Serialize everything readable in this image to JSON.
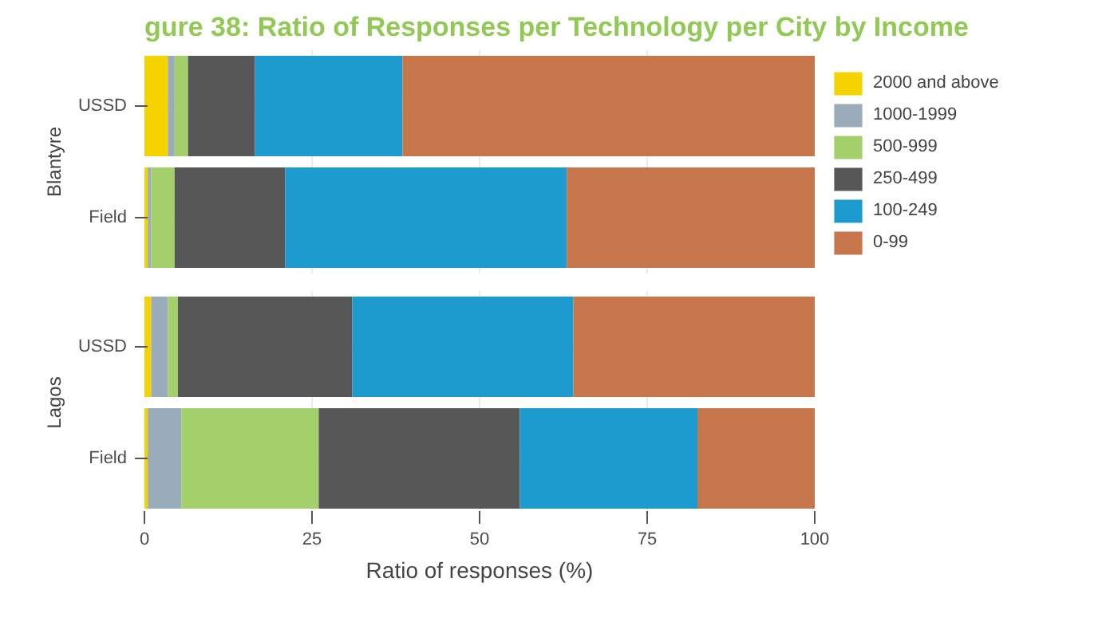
{
  "chart_data": [
    {
      "type": "bar",
      "orientation": "horizontal",
      "stacked": true,
      "title": "gure 38: Ratio of Responses per Technology per City by Income",
      "ylabel": "Blantyre",
      "categories": [
        "USSD",
        "Field"
      ],
      "xlim": [
        0,
        100
      ],
      "xticks": [
        0,
        25,
        50,
        75,
        100
      ],
      "grid": true,
      "tick_labels": "y",
      "legend": "right",
      "series": [
        {
          "name": "2000 and above",
          "color": "#f5d300",
          "values": [
            3.5,
            0.5
          ]
        },
        {
          "name": "1000-1999",
          "color": "#9aabb9",
          "values": [
            1,
            0.5
          ]
        },
        {
          "name": "500-999",
          "color": "#a3d06b",
          "values": [
            2,
            3.5
          ]
        },
        {
          "name": "250-499",
          "color": "#575757",
          "values": [
            10,
            16.5
          ]
        },
        {
          "name": "100-249",
          "color": "#1d9bcf",
          "values": [
            22,
            42
          ]
        },
        {
          "name": "0-99",
          "color": "#c6764a",
          "values": [
            61.5,
            37
          ]
        }
      ]
    },
    {
      "type": "bar",
      "orientation": "horizontal",
      "stacked": true,
      "ylabel": "Lagos",
      "xlabel": "Ratio of responses (%)",
      "categories": [
        "USSD",
        "Field"
      ],
      "xlim": [
        0,
        100
      ],
      "xticks": [
        0,
        25,
        50,
        75,
        100
      ],
      "grid": true,
      "series": [
        {
          "color": "#f5d300",
          "values": [
            1,
            0.5
          ]
        },
        {
          "color": "#9aabb9",
          "values": [
            2.5,
            5
          ]
        },
        {
          "color": "#a3d06b",
          "values": [
            1.5,
            20.5
          ]
        },
        {
          "color": "#575757",
          "values": [
            26,
            30
          ]
        },
        {
          "color": "#1d9bcf",
          "values": [
            33,
            26.5
          ]
        },
        {
          "color": "#c6764a",
          "values": [
            36,
            17.5
          ]
        }
      ]
    }
  ]
}
